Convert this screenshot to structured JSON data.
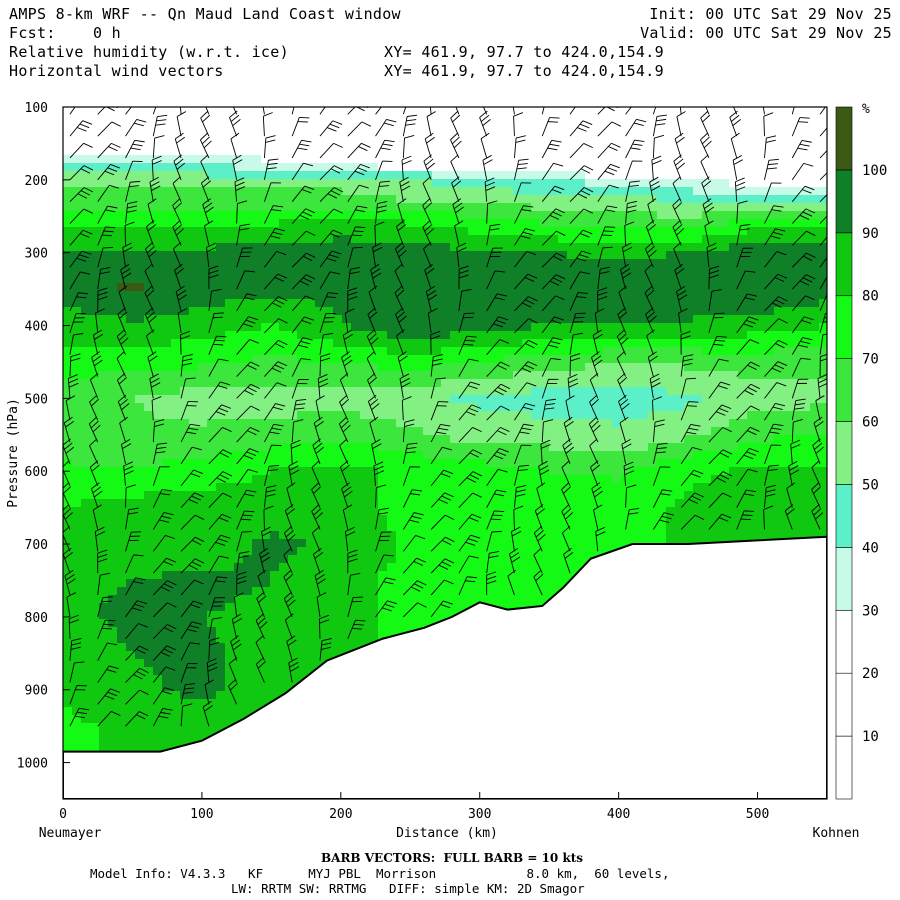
{
  "header": {
    "title": "AMPS 8-km WRF -- Qn Maud Land Coast window",
    "init": "Init: 00 UTC Sat 29 Nov 25",
    "fcst": "Fcst:    0 h",
    "valid": "Valid: 00 UTC Sat 29 Nov 25",
    "field1": "Relative humidity (w.r.t. ice)",
    "field1_xy": "XY= 461.9, 97.7 to 424.0,154.9",
    "field2": "Horizontal wind vectors",
    "field2_xy": "XY= 461.9, 97.7 to 424.0,154.9"
  },
  "footer": {
    "barb_note": "BARB VECTORS:  FULL BARB = 10 kts",
    "model_info_line1": "Model Info: V4.3.3   KF      MYJ PBL  Morrison            8.0 km,  60 levels,",
    "model_info_line2": "LW: RRTM SW: RRTMG   DIFF: simple KM: 2D Smagor"
  },
  "colors": {
    "band_10_20": "#ffffff",
    "band_20_30": "#ffffff",
    "band_30_40": "#c8fae8",
    "band_40_50": "#5cf0c8",
    "band_50_60": "#82f082",
    "band_60_70": "#3ce63c",
    "band_70_80": "#14fa14",
    "band_80_90": "#0fc80f",
    "band_90_100": "#0f7f28",
    "band_100_plus": "#3c5a14",
    "terrain": "#ffffff",
    "barb": "#000000"
  },
  "chart_data": {
    "type": "heatmap",
    "title": "",
    "xlabel": "Distance (km)",
    "ylabel": "Pressure (hPa)",
    "x_left_label": "Neumayer",
    "x_right_label": "Kohnen",
    "xlim": [
      0,
      550
    ],
    "ylim": [
      1050,
      100
    ],
    "xticks": [
      0,
      100,
      200,
      300,
      400,
      500
    ],
    "yticks": [
      100,
      200,
      300,
      400,
      500,
      600,
      700,
      800,
      900,
      1000
    ],
    "colorbar": {
      "unit": "%",
      "levels": [
        10,
        20,
        30,
        40,
        50,
        60,
        70,
        80,
        90,
        100
      ]
    },
    "terrain_surface": [
      {
        "x": 0,
        "p": 985
      },
      {
        "x": 30,
        "p": 985
      },
      {
        "x": 70,
        "p": 985
      },
      {
        "x": 100,
        "p": 970
      },
      {
        "x": 130,
        "p": 940
      },
      {
        "x": 160,
        "p": 905
      },
      {
        "x": 190,
        "p": 860
      },
      {
        "x": 230,
        "p": 830
      },
      {
        "x": 260,
        "p": 815
      },
      {
        "x": 280,
        "p": 800
      },
      {
        "x": 300,
        "p": 780
      },
      {
        "x": 320,
        "p": 790
      },
      {
        "x": 345,
        "p": 785
      },
      {
        "x": 360,
        "p": 760
      },
      {
        "x": 380,
        "p": 720
      },
      {
        "x": 410,
        "p": 700
      },
      {
        "x": 450,
        "p": 700
      },
      {
        "x": 500,
        "p": 695
      },
      {
        "x": 550,
        "p": 690
      }
    ],
    "rh_field": [
      {
        "p": 100,
        "rh": [
          15,
          15,
          15,
          15,
          15,
          15,
          15,
          15,
          15,
          15,
          15,
          15
        ]
      },
      {
        "p": 150,
        "rh": [
          15,
          15,
          15,
          15,
          15,
          15,
          15,
          15,
          15,
          15,
          15,
          15
        ]
      },
      {
        "p": 180,
        "rh": [
          45,
          45,
          40,
          35,
          30,
          25,
          20,
          15,
          15,
          15,
          15,
          15
        ]
      },
      {
        "p": 200,
        "rh": [
          55,
          55,
          55,
          55,
          55,
          50,
          45,
          40,
          35,
          30,
          25,
          20
        ]
      },
      {
        "p": 230,
        "rh": [
          65,
          65,
          65,
          65,
          65,
          60,
          60,
          55,
          55,
          50,
          45,
          45
        ]
      },
      {
        "p": 260,
        "rh": [
          80,
          80,
          80,
          80,
          85,
          80,
          75,
          70,
          65,
          65,
          75,
          75
        ]
      },
      {
        "p": 300,
        "rh": [
          92,
          92,
          92,
          95,
          95,
          95,
          92,
          90,
          88,
          90,
          98,
          100
        ]
      },
      {
        "p": 350,
        "rh": [
          95,
          102,
          95,
          92,
          92,
          95,
          95,
          95,
          100,
          100,
          100,
          95
        ]
      },
      {
        "p": 400,
        "rh": [
          85,
          88,
          85,
          80,
          90,
          98,
          95,
          90,
          90,
          88,
          85,
          80
        ]
      },
      {
        "p": 450,
        "rh": [
          75,
          75,
          72,
          68,
          70,
          75,
          70,
          65,
          60,
          62,
          65,
          62
        ]
      },
      {
        "p": 500,
        "rh": [
          62,
          60,
          55,
          55,
          55,
          52,
          48,
          45,
          45,
          48,
          55,
          58
        ]
      },
      {
        "p": 550,
        "rh": [
          65,
          62,
          62,
          65,
          68,
          62,
          55,
          55,
          52,
          58,
          68,
          70
        ]
      },
      {
        "p": 600,
        "rh": [
          72,
          70,
          75,
          80,
          82,
          78,
          75,
          70,
          68,
          78,
          82,
          80
        ]
      },
      {
        "p": 650,
        "rh": [
          80,
          85,
          85,
          85,
          82,
          78,
          80,
          78,
          76,
          82,
          82,
          80
        ]
      },
      {
        "p": 700,
        "rh": [
          82,
          85,
          85,
          92,
          88,
          78,
          75,
          72,
          80,
          null,
          null,
          null
        ]
      },
      {
        "p": 750,
        "rh": [
          88,
          90,
          92,
          90,
          82,
          78,
          70,
          72,
          null,
          null,
          null,
          null
        ]
      },
      {
        "p": 800,
        "rh": [
          88,
          92,
          90,
          88,
          82,
          78,
          null,
          null,
          null,
          null,
          null,
          null
        ]
      },
      {
        "p": 850,
        "rh": [
          85,
          90,
          92,
          85,
          80,
          null,
          null,
          null,
          null,
          null,
          null,
          null
        ]
      },
      {
        "p": 900,
        "rh": [
          82,
          88,
          92,
          86,
          null,
          null,
          null,
          null,
          null,
          null,
          null,
          null
        ]
      },
      {
        "p": 950,
        "rh": [
          78,
          82,
          85,
          null,
          null,
          null,
          null,
          null,
          null,
          null,
          null,
          null
        ]
      }
    ],
    "rh_field_x": [
      0,
      50,
      100,
      150,
      200,
      250,
      300,
      350,
      400,
      450,
      500,
      550
    ],
    "wind_barbs_note": "wind barbs plotted at each grid column from 100 hPa to surface"
  }
}
